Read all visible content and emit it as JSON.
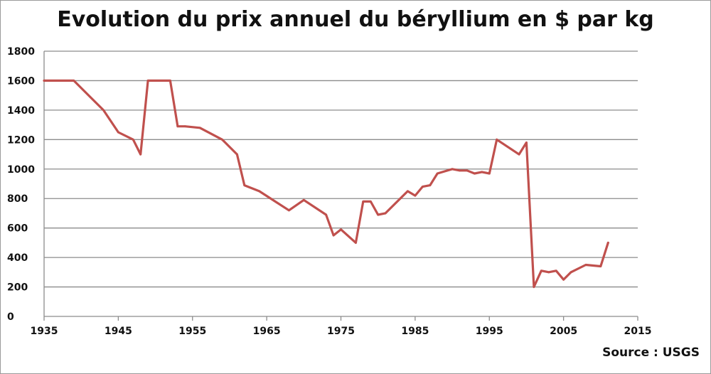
{
  "chart_data": {
    "type": "line",
    "title": "Evolution du prix annuel du béryllium en $ par kg",
    "source": "Source : USGS",
    "xlabel": "",
    "ylabel": "",
    "xlim": [
      1935,
      2015
    ],
    "ylim": [
      0,
      1800
    ],
    "x_ticks": [
      1935,
      1945,
      1955,
      1965,
      1975,
      1985,
      1995,
      2005,
      2015
    ],
    "y_ticks": [
      0,
      200,
      400,
      600,
      800,
      1000,
      1200,
      1400,
      1600,
      1800
    ],
    "grid": "horizontal",
    "line_color": "#c0504d",
    "series": [
      {
        "x": [
          1935,
          1939,
          1943,
          1945,
          1947,
          1948,
          1949,
          1952,
          1953,
          1954,
          1956,
          1959,
          1961,
          1962,
          1964,
          1968,
          1970,
          1973,
          1974,
          1975,
          1977,
          1978,
          1979,
          1980,
          1981,
          1984,
          1985,
          1986,
          1987,
          1988,
          1990,
          1991,
          1992,
          1993,
          1994,
          1995,
          1996,
          1999,
          2000,
          2001,
          2002,
          2003,
          2004,
          2005,
          2006,
          2008,
          2010,
          2011
        ],
        "y": [
          1600,
          1600,
          1400,
          1250,
          1200,
          1100,
          1600,
          1600,
          1290,
          1290,
          1280,
          1200,
          1100,
          890,
          850,
          720,
          790,
          690,
          550,
          590,
          500,
          780,
          780,
          690,
          700,
          850,
          820,
          880,
          890,
          970,
          1000,
          990,
          990,
          970,
          980,
          970,
          1200,
          1100,
          1180,
          200,
          310,
          300,
          310,
          250,
          300,
          350,
          340,
          500
        ]
      }
    ]
  }
}
